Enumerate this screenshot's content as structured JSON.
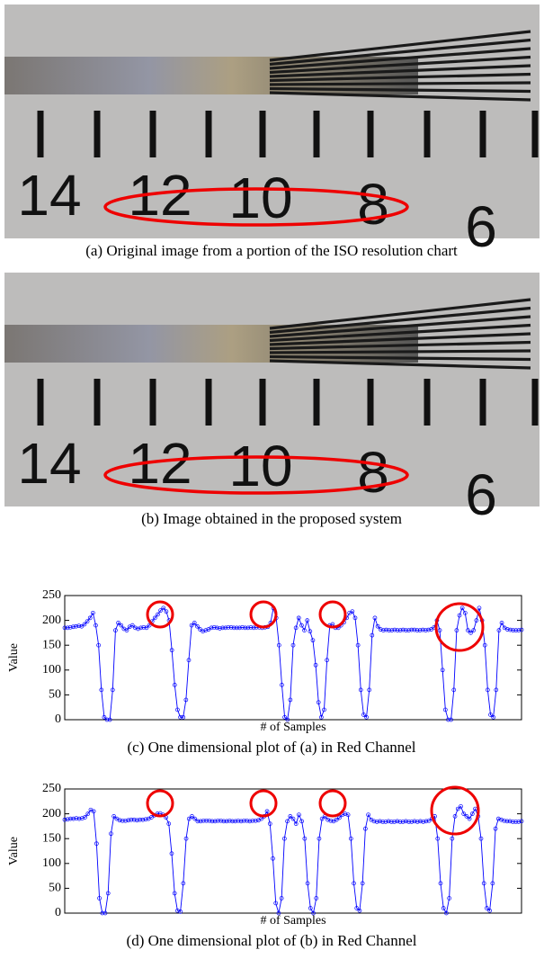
{
  "photos": [
    {
      "caption": "(a) Original image from a portion of the ISO resolution chart",
      "scale_labels": [
        "14",
        "12",
        "10",
        "8",
        "6"
      ]
    },
    {
      "caption": "(b) Image obtained in the proposed system",
      "scale_labels": [
        "14",
        "12",
        "10",
        "8",
        "6"
      ]
    }
  ],
  "chart_data": [
    {
      "type": "line",
      "caption": "(c) One dimensional plot of (a) in Red Channel",
      "ylabel": "Value",
      "xlabel": "# of Samples",
      "ylim": [
        0,
        250
      ],
      "yticks": [
        0,
        50,
        100,
        150,
        200,
        250
      ],
      "xlim": [
        1,
        163
      ],
      "color": "#0000ff",
      "values": [
        185,
        185,
        186,
        187,
        188,
        189,
        188,
        192,
        198,
        205,
        215,
        190,
        150,
        60,
        5,
        0,
        0,
        60,
        180,
        195,
        190,
        183,
        180,
        187,
        190,
        185,
        183,
        185,
        186,
        185,
        190,
        198,
        205,
        212,
        220,
        225,
        218,
        200,
        140,
        70,
        20,
        5,
        5,
        40,
        120,
        190,
        195,
        188,
        182,
        178,
        180,
        182,
        185,
        186,
        185,
        184,
        185,
        185,
        186,
        186,
        185,
        185,
        185,
        186,
        185,
        185,
        186,
        185,
        186,
        186,
        185,
        186,
        187,
        195,
        225,
        205,
        150,
        70,
        5,
        0,
        40,
        150,
        185,
        205,
        190,
        180,
        200,
        178,
        160,
        110,
        35,
        5,
        20,
        120,
        190,
        192,
        185,
        185,
        190,
        196,
        205,
        215,
        218,
        205,
        150,
        60,
        10,
        5,
        60,
        170,
        205,
        188,
        182,
        180,
        181,
        180,
        180,
        181,
        180,
        180,
        181,
        180,
        180,
        181,
        181,
        180,
        180,
        181,
        180,
        181,
        182,
        186,
        200,
        180,
        100,
        20,
        0,
        0,
        60,
        180,
        210,
        225,
        215,
        180,
        175,
        180,
        200,
        225,
        200,
        150,
        60,
        10,
        5,
        60,
        180,
        195,
        185,
        182,
        181,
        180,
        180,
        180,
        181
      ]
    },
    {
      "type": "line",
      "caption": "(d) One dimensional plot of (b) in Red Channel",
      "ylabel": "Value",
      "xlabel": "# of Samples",
      "ylim": [
        0,
        250
      ],
      "yticks": [
        0,
        50,
        100,
        150,
        200,
        250
      ],
      "xlim": [
        1,
        159
      ],
      "color": "#0000ff",
      "values": [
        188,
        189,
        190,
        190,
        191,
        190,
        191,
        193,
        200,
        208,
        205,
        140,
        30,
        0,
        0,
        40,
        160,
        195,
        190,
        187,
        186,
        186,
        187,
        188,
        188,
        187,
        188,
        188,
        189,
        190,
        193,
        197,
        200,
        201,
        198,
        193,
        180,
        120,
        40,
        5,
        3,
        60,
        150,
        190,
        195,
        190,
        185,
        185,
        186,
        186,
        186,
        185,
        185,
        186,
        186,
        185,
        185,
        186,
        185,
        185,
        186,
        185,
        186,
        186,
        185,
        186,
        186,
        187,
        190,
        195,
        205,
        180,
        110,
        20,
        0,
        30,
        150,
        185,
        195,
        190,
        180,
        198,
        185,
        150,
        60,
        10,
        0,
        30,
        150,
        190,
        195,
        188,
        186,
        185,
        188,
        192,
        198,
        200,
        198,
        150,
        60,
        10,
        5,
        60,
        170,
        198,
        188,
        185,
        184,
        185,
        184,
        184,
        185,
        184,
        184,
        185,
        184,
        184,
        185,
        184,
        184,
        185,
        184,
        185,
        184,
        185,
        186,
        190,
        195,
        150,
        60,
        10,
        0,
        30,
        150,
        195,
        210,
        215,
        200,
        195,
        190,
        200,
        210,
        195,
        150,
        60,
        10,
        5,
        60,
        170,
        190,
        188,
        186,
        185,
        185,
        184,
        184,
        184,
        185
      ]
    }
  ]
}
